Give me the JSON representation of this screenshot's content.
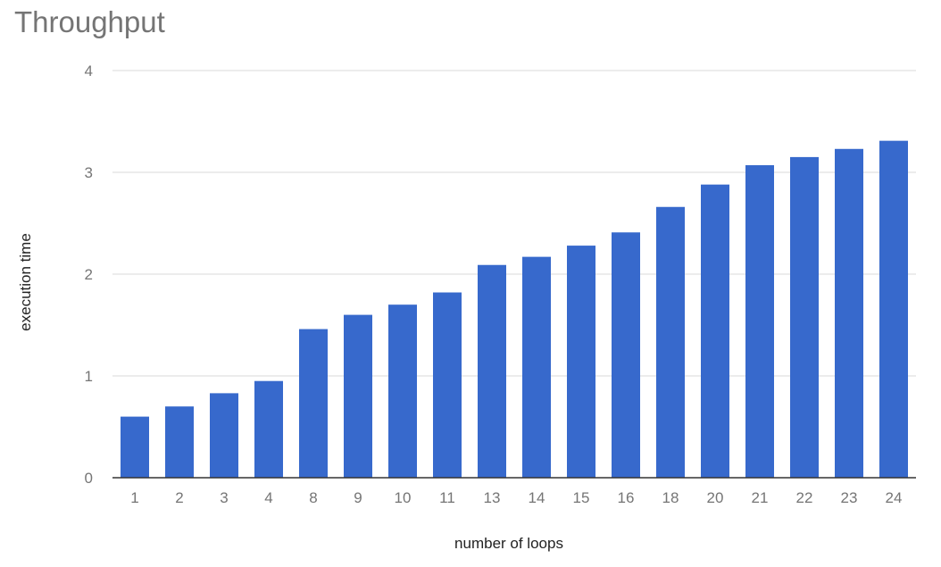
{
  "chart_data": {
    "type": "bar",
    "title": "Throughput",
    "xlabel": "number of loops",
    "ylabel": "execution time",
    "categories": [
      "1",
      "2",
      "3",
      "4",
      "8",
      "9",
      "10",
      "11",
      "13",
      "14",
      "15",
      "16",
      "18",
      "20",
      "21",
      "22",
      "23",
      "24"
    ],
    "series": [
      {
        "values": [
          0.6,
          0.7,
          0.83,
          0.95,
          1.46,
          1.6,
          1.7,
          1.82,
          2.09,
          2.17,
          2.28,
          2.41,
          2.66,
          2.88,
          3.07,
          3.15,
          3.23,
          3.31
        ]
      }
    ],
    "ylim": [
      0,
      4
    ],
    "yticks": [
      0,
      1,
      2,
      3,
      4
    ],
    "grid": true,
    "legend": "none",
    "colors": {
      "bar": "#3769CC",
      "grid": "#d9d9d9",
      "axis": "#333333",
      "tick_text": "#757575",
      "title_text": "#757575"
    }
  }
}
